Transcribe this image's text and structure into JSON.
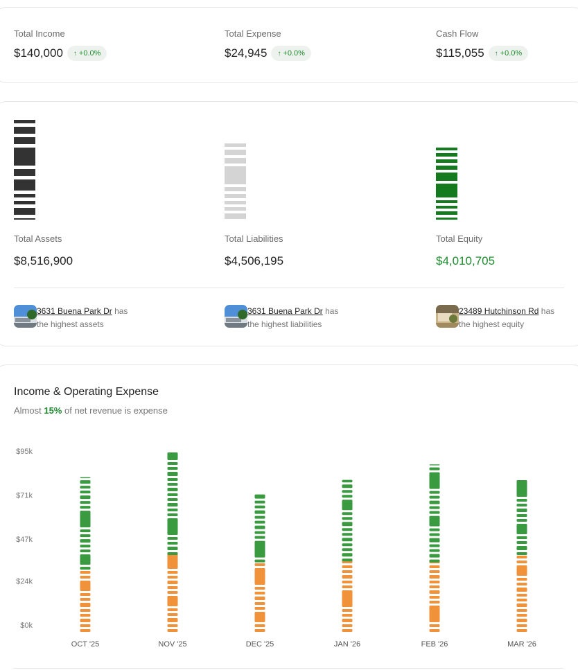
{
  "kpis": [
    {
      "label": "Total Income",
      "value": "$140,000",
      "change": "+0.0%"
    },
    {
      "label": "Total Expense",
      "value": "$24,945",
      "change": "+0.0%"
    },
    {
      "label": "Cash Flow",
      "value": "$115,055",
      "change": "+0.0%"
    }
  ],
  "balance": [
    {
      "label": "Total Assets",
      "value": "$8,516,900",
      "color": "#333333"
    },
    {
      "label": "Total Liabilities",
      "value": "$4,506,195",
      "color": "#d4d4d4"
    },
    {
      "label": "Total Equity",
      "value": "$4,010,705",
      "color": "#137a1e"
    }
  ],
  "highlights": [
    {
      "property": "3631 Buena Park Dr",
      "has": "has",
      "text": "the highest assets"
    },
    {
      "property": "3631 Buena Park Dr",
      "has": "has",
      "text": "the highest liabilities"
    },
    {
      "property": "23489 Hutchinson Rd",
      "has": "has",
      "text": "the highest equity"
    }
  ],
  "chart_section": {
    "title": "Income & Operating Expense",
    "subtitle_pre": "Almost ",
    "subtitle_pct": "15%",
    "subtitle_post": " of net revenue is expense"
  },
  "colors": {
    "income": "#3a9a40",
    "expense": "#f0923a",
    "positive": "#1f8a2e"
  },
  "chart_data": {
    "type": "bar",
    "stacked": true,
    "categories": [
      "OCT '25",
      "NOV '25",
      "DEC '25",
      "JAN '26",
      "FEB '26",
      "MAR '26"
    ],
    "series": [
      {
        "name": "Operating Expense",
        "values": [
          34000,
          42000,
          38000,
          38500,
          38000,
          42000
        ],
        "color": "#f0923a"
      },
      {
        "name": "Income",
        "values": [
          49000,
          54500,
          37000,
          43000,
          52000,
          40000
        ],
        "color": "#3a9a40"
      }
    ],
    "y_ticks": [
      "$0k",
      "$24k",
      "$47k",
      "$71k",
      "$95k"
    ],
    "y_tick_values": [
      0,
      24000,
      47000,
      71000,
      95000
    ],
    "ylim": [
      0,
      95000
    ],
    "xlabel": "",
    "ylabel": "",
    "grid": false,
    "legend": "none"
  }
}
